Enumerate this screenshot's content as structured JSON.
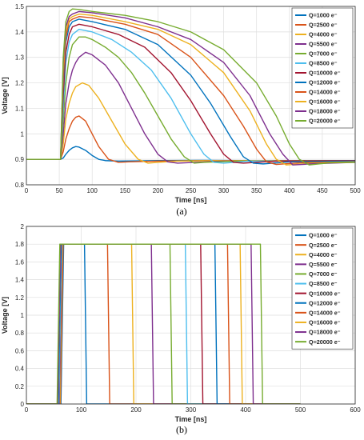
{
  "panels": [
    {
      "label": "(a)"
    },
    {
      "label": "(b)"
    }
  ],
  "chart_data": [
    {
      "type": "line",
      "xlabel": "Time [ns]",
      "ylabel": "Voltage [V]",
      "xlim": [
        0,
        500
      ],
      "ylim": [
        0.8,
        1.5
      ],
      "xticks": [
        0,
        50,
        100,
        150,
        200,
        250,
        300,
        350,
        400,
        450,
        500
      ],
      "yticks": [
        0.8,
        0.9,
        1.0,
        1.1,
        1.2,
        1.3,
        1.4,
        1.5
      ],
      "grid": true,
      "legend": "top-right",
      "series": [
        {
          "name": "Q=1000 e⁻",
          "color": "#0072BD",
          "x": [
            0,
            52,
            56,
            60,
            65,
            70,
            75,
            80,
            90,
            100,
            110,
            120,
            140,
            170,
            200,
            260,
            330,
            420,
            500
          ],
          "y": [
            0.9,
            0.9,
            0.905,
            0.92,
            0.935,
            0.945,
            0.95,
            0.948,
            0.935,
            0.915,
            0.9,
            0.895,
            0.893,
            0.894,
            0.895,
            0.896,
            0.895,
            0.894,
            0.895
          ]
        },
        {
          "name": "Q=2500 e⁻",
          "color": "#D95319",
          "x": [
            0,
            52,
            56,
            60,
            65,
            70,
            75,
            80,
            90,
            100,
            110,
            125,
            140,
            155,
            200,
            280,
            340,
            500
          ],
          "y": [
            0.9,
            0.9,
            0.93,
            0.98,
            1.02,
            1.05,
            1.065,
            1.07,
            1.05,
            1.0,
            0.95,
            0.9,
            0.888,
            0.89,
            0.893,
            0.895,
            0.893,
            0.895
          ]
        },
        {
          "name": "Q=4000 e⁻",
          "color": "#EDB120",
          "x": [
            0,
            52,
            56,
            60,
            65,
            70,
            75,
            85,
            95,
            110,
            130,
            150,
            170,
            185,
            200,
            230,
            300,
            500
          ],
          "y": [
            0.9,
            0.9,
            0.96,
            1.06,
            1.12,
            1.16,
            1.185,
            1.2,
            1.19,
            1.14,
            1.05,
            0.96,
            0.9,
            0.885,
            0.888,
            0.893,
            0.895,
            0.895
          ]
        },
        {
          "name": "Q=5500 e⁻",
          "color": "#7E2F8E",
          "x": [
            0,
            52,
            56,
            60,
            65,
            70,
            75,
            80,
            90,
            100,
            120,
            140,
            160,
            180,
            200,
            215,
            230,
            300,
            500
          ],
          "y": [
            0.9,
            0.9,
            1.0,
            1.12,
            1.2,
            1.25,
            1.28,
            1.3,
            1.32,
            1.31,
            1.27,
            1.2,
            1.1,
            1.0,
            0.92,
            0.89,
            0.885,
            0.893,
            0.895
          ]
        },
        {
          "name": "Q=7000 e⁻",
          "color": "#77AC30",
          "x": [
            0,
            52,
            56,
            60,
            65,
            70,
            80,
            90,
            100,
            120,
            140,
            160,
            180,
            200,
            220,
            240,
            255,
            270,
            320,
            500
          ],
          "y": [
            0.9,
            0.9,
            1.05,
            1.2,
            1.3,
            1.35,
            1.38,
            1.38,
            1.37,
            1.34,
            1.3,
            1.24,
            1.16,
            1.07,
            0.98,
            0.91,
            0.885,
            0.888,
            0.893,
            0.895
          ]
        },
        {
          "name": "Q=8500 e⁻",
          "color": "#4DBEEE",
          "x": [
            0,
            52,
            56,
            60,
            65,
            70,
            80,
            100,
            130,
            160,
            190,
            220,
            250,
            270,
            285,
            300,
            340,
            500
          ],
          "y": [
            0.9,
            0.9,
            1.1,
            1.28,
            1.36,
            1.39,
            1.41,
            1.4,
            1.37,
            1.32,
            1.25,
            1.14,
            1.0,
            0.92,
            0.888,
            0.885,
            0.893,
            0.895
          ]
        },
        {
          "name": "Q=10000 e⁻",
          "color": "#A2142F",
          "x": [
            0,
            52,
            56,
            60,
            65,
            70,
            80,
            100,
            140,
            180,
            220,
            250,
            280,
            300,
            315,
            330,
            380,
            500
          ],
          "y": [
            0.9,
            0.9,
            1.15,
            1.32,
            1.39,
            1.42,
            1.43,
            1.42,
            1.39,
            1.34,
            1.24,
            1.13,
            1.0,
            0.92,
            0.888,
            0.885,
            0.893,
            0.895
          ]
        },
        {
          "name": "Q=12000 e⁻",
          "color": "#0072BD",
          "x": [
            0,
            52,
            56,
            60,
            65,
            70,
            80,
            100,
            150,
            200,
            250,
            280,
            310,
            330,
            345,
            360,
            400,
            500
          ],
          "y": [
            0.9,
            0.9,
            1.2,
            1.36,
            1.42,
            1.44,
            1.45,
            1.44,
            1.41,
            1.35,
            1.23,
            1.12,
            0.99,
            0.91,
            0.885,
            0.882,
            0.89,
            0.893
          ]
        },
        {
          "name": "Q=14000 e⁻",
          "color": "#D95319",
          "x": [
            0,
            52,
            56,
            60,
            65,
            70,
            80,
            100,
            150,
            200,
            250,
            300,
            330,
            350,
            365,
            380,
            420,
            500
          ],
          "y": [
            0.9,
            0.9,
            1.22,
            1.38,
            1.44,
            1.45,
            1.46,
            1.455,
            1.43,
            1.39,
            1.3,
            1.15,
            1.03,
            0.94,
            0.89,
            0.88,
            0.887,
            0.89
          ]
        },
        {
          "name": "Q=16000 e⁻",
          "color": "#EDB120",
          "x": [
            0,
            52,
            56,
            60,
            65,
            70,
            80,
            100,
            150,
            200,
            250,
            300,
            340,
            365,
            380,
            395,
            430,
            500
          ],
          "y": [
            0.9,
            0.9,
            1.25,
            1.4,
            1.45,
            1.46,
            1.47,
            1.465,
            1.44,
            1.41,
            1.35,
            1.24,
            1.09,
            0.96,
            0.9,
            0.878,
            0.884,
            0.89
          ]
        },
        {
          "name": "Q=18000 e⁻",
          "color": "#7E2F8E",
          "x": [
            0,
            52,
            56,
            60,
            65,
            70,
            80,
            100,
            150,
            200,
            250,
            300,
            340,
            370,
            390,
            405,
            440,
            500
          ],
          "y": [
            0.9,
            0.9,
            1.28,
            1.42,
            1.46,
            1.47,
            1.48,
            1.475,
            1.455,
            1.42,
            1.37,
            1.28,
            1.15,
            1.0,
            0.92,
            0.878,
            0.883,
            0.888
          ]
        },
        {
          "name": "Q=20000 e⁻",
          "color": "#77AC30",
          "x": [
            0,
            52,
            56,
            60,
            65,
            70,
            80,
            100,
            150,
            200,
            250,
            300,
            350,
            380,
            400,
            415,
            430,
            460,
            500
          ],
          "y": [
            0.9,
            0.9,
            1.3,
            1.44,
            1.48,
            1.49,
            1.488,
            1.48,
            1.465,
            1.44,
            1.4,
            1.33,
            1.2,
            1.07,
            0.96,
            0.9,
            0.878,
            0.886,
            0.888
          ]
        }
      ]
    },
    {
      "type": "line",
      "xlabel": "Time [ns]",
      "ylabel": "Voltage [V]",
      "xlim": [
        0,
        600
      ],
      "ylim": [
        0,
        2
      ],
      "xticks": [
        0,
        100,
        200,
        300,
        400,
        500,
        600
      ],
      "yticks": [
        0,
        0.2,
        0.4,
        0.6,
        0.8,
        1.0,
        1.2,
        1.4,
        1.6,
        1.8,
        2.0
      ],
      "grid": true,
      "legend": "top-right",
      "series": [
        {
          "name": "Q=1000 e⁻",
          "color": "#0072BD",
          "x": [
            0,
            63,
            68,
            106,
            110,
            500
          ],
          "y": [
            0,
            0,
            1.8,
            1.8,
            0,
            0
          ]
        },
        {
          "name": "Q=2500 e⁻",
          "color": "#D95319",
          "x": [
            0,
            62,
            67,
            148,
            152,
            500
          ],
          "y": [
            0,
            0,
            1.8,
            1.8,
            0,
            0
          ]
        },
        {
          "name": "Q=4000 e⁻",
          "color": "#EDB120",
          "x": [
            0,
            61,
            66,
            192,
            196,
            500
          ],
          "y": [
            0,
            0,
            1.8,
            1.8,
            0,
            0
          ]
        },
        {
          "name": "Q=5500 e⁻",
          "color": "#7E2F8E",
          "x": [
            0,
            60,
            65,
            228,
            232,
            500
          ],
          "y": [
            0,
            0,
            1.8,
            1.8,
            0,
            0
          ]
        },
        {
          "name": "Q=7000 e⁻",
          "color": "#77AC30",
          "x": [
            0,
            59,
            64,
            262,
            266,
            500
          ],
          "y": [
            0,
            0,
            1.8,
            1.8,
            0,
            0
          ]
        },
        {
          "name": "Q=8500 e⁻",
          "color": "#4DBEEE",
          "x": [
            0,
            59,
            64,
            290,
            294,
            500
          ],
          "y": [
            0,
            0,
            1.8,
            1.8,
            0,
            0
          ]
        },
        {
          "name": "Q=10000 e⁻",
          "color": "#A2142F",
          "x": [
            0,
            58,
            63,
            318,
            322,
            500
          ],
          "y": [
            0,
            0,
            1.8,
            1.8,
            0,
            0
          ]
        },
        {
          "name": "Q=12000 e⁻",
          "color": "#0072BD",
          "x": [
            0,
            58,
            63,
            344,
            348,
            500
          ],
          "y": [
            0,
            0,
            1.8,
            1.8,
            0,
            0
          ]
        },
        {
          "name": "Q=14000 e⁻",
          "color": "#D95319",
          "x": [
            0,
            57,
            62,
            367,
            371,
            500
          ],
          "y": [
            0,
            0,
            1.8,
            1.8,
            0,
            0
          ]
        },
        {
          "name": "Q=16000 e⁻",
          "color": "#EDB120",
          "x": [
            0,
            57,
            62,
            390,
            394,
            500
          ],
          "y": [
            0,
            0,
            1.8,
            1.8,
            0,
            0
          ]
        },
        {
          "name": "Q=18000 e⁻",
          "color": "#7E2F8E",
          "x": [
            0,
            57,
            62,
            410,
            414,
            500
          ],
          "y": [
            0,
            0,
            1.8,
            1.8,
            0,
            0
          ]
        },
        {
          "name": "Q=20000 e⁻",
          "color": "#77AC30",
          "x": [
            0,
            56,
            61,
            427,
            431,
            500
          ],
          "y": [
            0,
            0,
            1.8,
            1.8,
            0,
            0
          ]
        }
      ]
    }
  ]
}
